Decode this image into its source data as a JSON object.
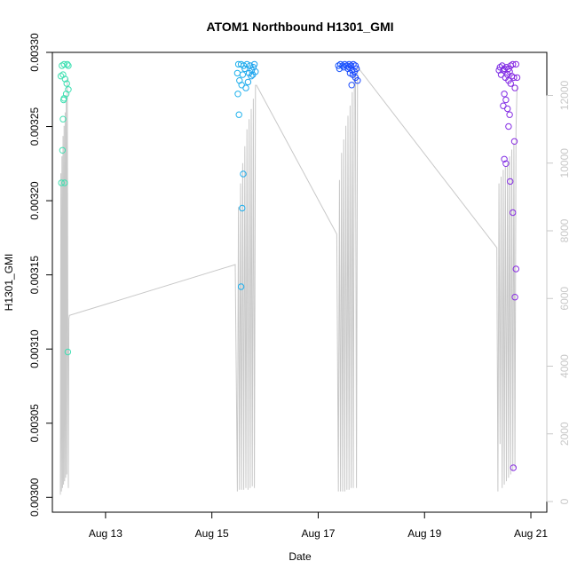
{
  "chart_data": {
    "type": "scatter",
    "title": "ATOM1 Northbound H1301_GMI",
    "xlabel": "Date",
    "ylabel": "H1301_GMI",
    "x_ticks": [
      "Aug 13",
      "Aug 15",
      "Aug 17",
      "Aug 19",
      "Aug 21"
    ],
    "x_tick_days": [
      13,
      15,
      17,
      19,
      21
    ],
    "xlim_days": [
      12.0,
      21.3
    ],
    "y_ticks": [
      "0.00300",
      "0.00305",
      "0.00310",
      "0.00315",
      "0.00320",
      "0.00325",
      "0.00330"
    ],
    "ylim": [
      0.00299,
      0.0033
    ],
    "y2_ticks": [
      "0",
      "2000",
      "4000",
      "6000",
      "8000",
      "10000",
      "12000"
    ],
    "y2lim": [
      0,
      12800
    ],
    "grid": false,
    "colors": {
      "scatter_gradient": [
        "#40e0b0",
        "#20c8e8",
        "#1a40ff",
        "#8a2be2"
      ],
      "altitude_line": "#c8c8c8"
    },
    "series": [
      {
        "values": [
          [
            12.18,
            0.003291
          ],
          [
            12.22,
            0.003292
          ],
          [
            12.28,
            0.003292
          ],
          [
            12.3,
            0.003291
          ],
          [
            12.16,
            0.003284
          ],
          [
            12.2,
            0.003285
          ],
          [
            12.24,
            0.003282
          ],
          [
            12.27,
            0.003279
          ],
          [
            12.3,
            0.003275
          ],
          [
            12.26,
            0.003272
          ],
          [
            12.22,
            0.003269
          ],
          [
            12.21,
            0.003268
          ],
          [
            12.2,
            0.003255
          ],
          [
            12.19,
            0.003234
          ],
          [
            12.17,
            0.003212
          ],
          [
            12.23,
            0.003212
          ],
          [
            12.29,
            0.003098
          ]
        ]
      },
      {
        "values": [
          [
            15.5,
            0.003292
          ],
          [
            15.55,
            0.003292
          ],
          [
            15.6,
            0.003291
          ],
          [
            15.66,
            0.003292
          ],
          [
            15.72,
            0.003291
          ],
          [
            15.78,
            0.00329
          ],
          [
            15.8,
            0.003292
          ],
          [
            15.82,
            0.003287
          ],
          [
            15.75,
            0.003288
          ],
          [
            15.7,
            0.003286
          ],
          [
            15.62,
            0.003289
          ],
          [
            15.58,
            0.003285
          ],
          [
            15.48,
            0.003286
          ],
          [
            15.52,
            0.003281
          ],
          [
            15.56,
            0.003278
          ],
          [
            15.64,
            0.003276
          ],
          [
            15.68,
            0.00328
          ],
          [
            15.74,
            0.003284
          ],
          [
            15.77,
            0.003285
          ],
          [
            15.49,
            0.003272
          ],
          [
            15.51,
            0.003258
          ],
          [
            15.59,
            0.003218
          ],
          [
            15.57,
            0.003195
          ],
          [
            15.55,
            0.003142
          ]
        ]
      },
      {
        "values": [
          [
            17.38,
            0.003291
          ],
          [
            17.42,
            0.003292
          ],
          [
            17.46,
            0.003291
          ],
          [
            17.5,
            0.003292
          ],
          [
            17.54,
            0.003291
          ],
          [
            17.58,
            0.003292
          ],
          [
            17.62,
            0.003291
          ],
          [
            17.66,
            0.003292
          ],
          [
            17.7,
            0.003291
          ],
          [
            17.4,
            0.003289
          ],
          [
            17.48,
            0.00329
          ],
          [
            17.56,
            0.003289
          ],
          [
            17.64,
            0.003288
          ],
          [
            17.68,
            0.003287
          ],
          [
            17.72,
            0.003289
          ],
          [
            17.65,
            0.003285
          ],
          [
            17.7,
            0.003283
          ],
          [
            17.74,
            0.003281
          ],
          [
            17.6,
            0.003286
          ],
          [
            17.58,
            0.00329
          ],
          [
            17.63,
            0.003278
          ]
        ]
      },
      {
        "values": [
          [
            20.42,
            0.00329
          ],
          [
            20.46,
            0.003291
          ],
          [
            20.5,
            0.003289
          ],
          [
            20.54,
            0.00329
          ],
          [
            20.58,
            0.003289
          ],
          [
            20.62,
            0.003291
          ],
          [
            20.66,
            0.003292
          ],
          [
            20.72,
            0.003292
          ],
          [
            20.44,
            0.003285
          ],
          [
            20.48,
            0.003288
          ],
          [
            20.56,
            0.003285
          ],
          [
            20.6,
            0.003287
          ],
          [
            20.64,
            0.003284
          ],
          [
            20.68,
            0.003283
          ],
          [
            20.74,
            0.003283
          ],
          [
            20.4,
            0.003288
          ],
          [
            20.52,
            0.003283
          ],
          [
            20.58,
            0.003281
          ],
          [
            20.62,
            0.003279
          ],
          [
            20.7,
            0.003276
          ],
          [
            20.5,
            0.003272
          ],
          [
            20.53,
            0.003268
          ],
          [
            20.56,
            0.003262
          ],
          [
            20.6,
            0.003258
          ],
          [
            20.48,
            0.003264
          ],
          [
            20.58,
            0.00325
          ],
          [
            20.69,
            0.00324
          ],
          [
            20.5,
            0.003228
          ],
          [
            20.53,
            0.003225
          ],
          [
            20.61,
            0.003213
          ],
          [
            20.66,
            0.003192
          ],
          [
            20.72,
            0.003154
          ],
          [
            20.7,
            0.003135
          ],
          [
            20.67,
            0.00302
          ]
        ]
      }
    ],
    "altitude_series": {
      "x": [
        12.15,
        12.16,
        12.17,
        12.18,
        12.19,
        12.2,
        12.21,
        12.22,
        12.23,
        12.24,
        12.25,
        12.26,
        12.27,
        12.28,
        12.29,
        12.3,
        12.31,
        12.32,
        15.44,
        15.48,
        15.5,
        15.52,
        15.54,
        15.56,
        15.58,
        15.6,
        15.62,
        15.64,
        15.66,
        15.68,
        15.7,
        15.72,
        15.74,
        15.76,
        15.78,
        15.8,
        15.82,
        15.84,
        17.35,
        17.38,
        17.4,
        17.42,
        17.44,
        17.46,
        17.48,
        17.5,
        17.52,
        17.54,
        17.56,
        17.58,
        17.6,
        17.62,
        17.64,
        17.66,
        17.68,
        17.7,
        17.72,
        17.74,
        17.76,
        20.36,
        20.38,
        20.4,
        20.42,
        20.44,
        20.46,
        20.48,
        20.5,
        20.52,
        20.54,
        20.56,
        20.58,
        20.6,
        20.62,
        20.64,
        20.66,
        20.68,
        20.7,
        20.72,
        20.74
      ],
      "y": [
        200,
        9700,
        300,
        10200,
        400,
        10800,
        500,
        11100,
        600,
        11500,
        700,
        12000,
        800,
        12500,
        5300,
        400,
        5400,
        5500,
        7000,
        300,
        8700,
        350,
        9400,
        350,
        10000,
        350,
        10500,
        400,
        11000,
        350,
        11300,
        400,
        11600,
        450,
        11900,
        400,
        12300,
        12300,
        7900,
        300,
        9500,
        300,
        10300,
        300,
        10700,
        300,
        11100,
        350,
        11400,
        350,
        11700,
        400,
        12100,
        400,
        12500,
        12700,
        400,
        12800,
        12800,
        7500,
        300,
        9400,
        1700,
        9600,
        400,
        9800,
        500,
        9900,
        600,
        10000,
        700,
        10200,
        800,
        10400,
        900,
        10600,
        1000,
        11000,
        12300
      ]
    }
  }
}
